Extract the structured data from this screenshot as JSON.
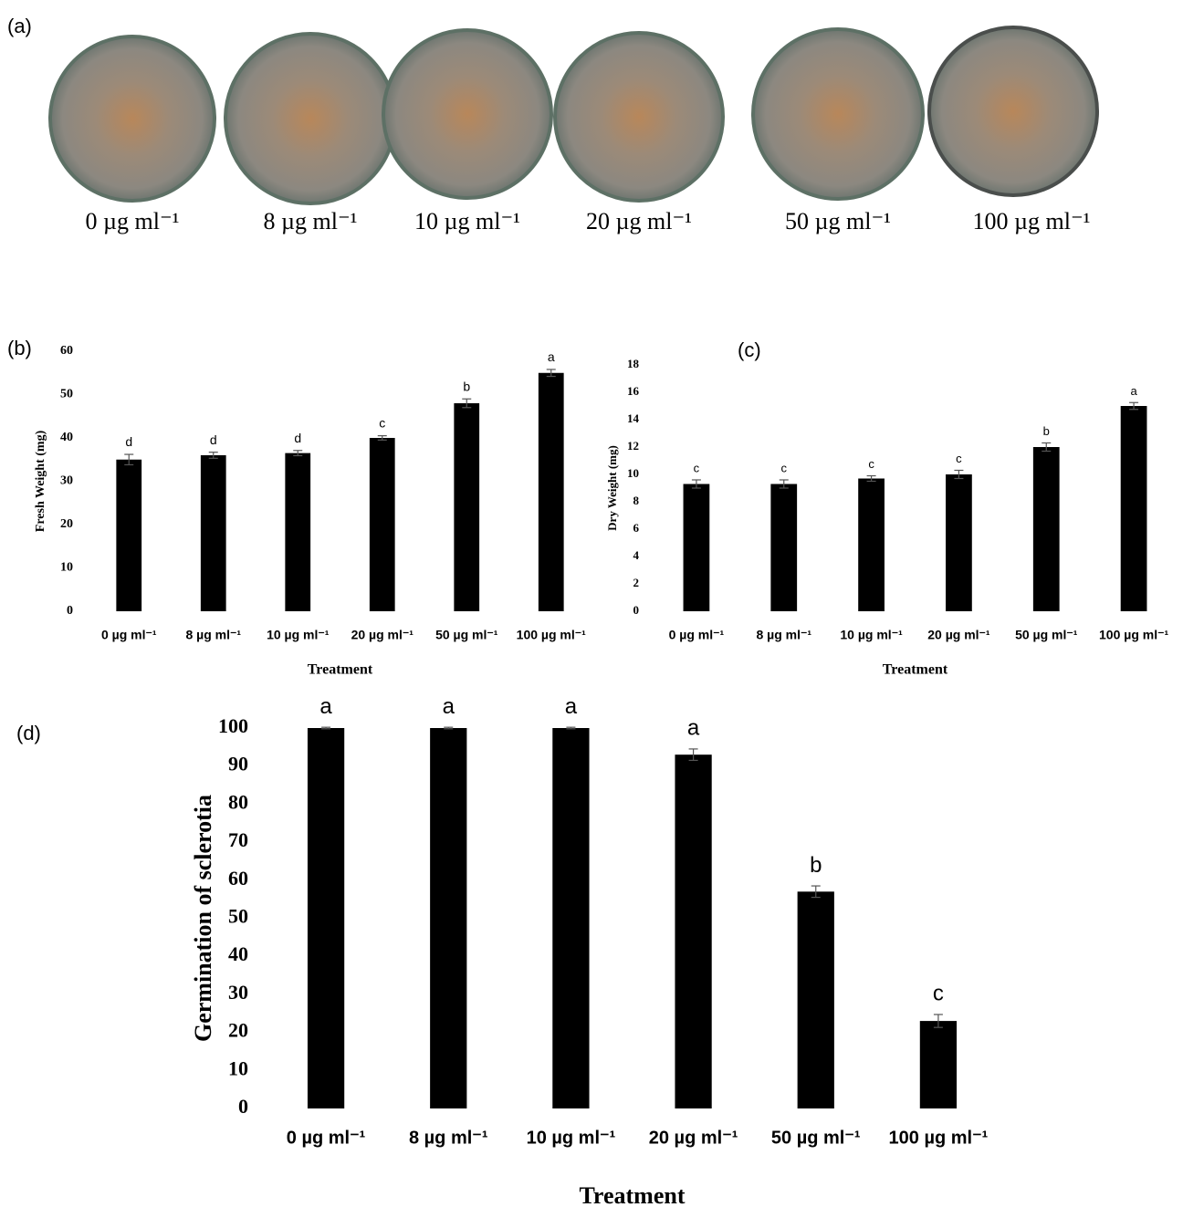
{
  "panel_a": {
    "label": "(a)",
    "captions": [
      "0 µg ml⁻¹",
      "8 µg ml⁻¹",
      "10 µg ml⁻¹",
      "20 µg ml⁻¹",
      "50 µg ml⁻¹",
      "100 µg ml⁻¹"
    ]
  },
  "chart_data": [
    {
      "type": "bar",
      "panel": "(b)",
      "ylabel": "Fresh Weight (mg)",
      "xlabel": "Treatment",
      "categories": [
        "0 µg ml⁻¹",
        "8 µg ml⁻¹",
        "10 µg ml⁻¹",
        "20 µg ml⁻¹",
        "50 µg ml⁻¹",
        "100 µg ml⁻¹"
      ],
      "values": [
        35,
        36,
        36.5,
        40,
        48,
        55
      ],
      "errors": [
        1.2,
        0.7,
        0.6,
        0.5,
        1,
        0.8
      ],
      "annotations": [
        "d",
        "d",
        "d",
        "c",
        "b",
        "a"
      ],
      "color": "#000000",
      "ylim": [
        0,
        60
      ],
      "yticks": [
        0,
        10,
        20,
        30,
        40,
        50,
        60
      ]
    },
    {
      "type": "bar",
      "panel": "(c)",
      "ylabel": "Dry Weight (mg)",
      "xlabel": "Treatment",
      "categories": [
        "0 µg ml⁻¹",
        "8 µg ml⁻¹",
        "10 µg ml⁻¹",
        "20 µg ml⁻¹",
        "50 µg ml⁻¹",
        "100 µg ml⁻¹"
      ],
      "values": [
        9.3,
        9.3,
        9.7,
        10,
        12,
        15
      ],
      "errors": [
        0.3,
        0.3,
        0.2,
        0.3,
        0.3,
        0.25
      ],
      "annotations": [
        "c",
        "c",
        "c",
        "c",
        "b",
        "a"
      ],
      "color": "#000000",
      "ylim": [
        0,
        18
      ],
      "yticks": [
        0,
        2,
        4,
        6,
        8,
        10,
        12,
        14,
        16,
        18
      ]
    },
    {
      "type": "bar",
      "panel": "(d)",
      "ylabel": "Germination of sclerotia",
      "xlabel": "Treatment",
      "categories": [
        "0 µg ml⁻¹",
        "8 µg ml⁻¹",
        "10 µg ml⁻¹",
        "20 µg ml⁻¹",
        "50 µg ml⁻¹",
        "100 µg ml⁻¹"
      ],
      "values": [
        100,
        100,
        100,
        93,
        57,
        23
      ],
      "errors": [
        0.2,
        0.2,
        0.2,
        1.5,
        1.5,
        1.7
      ],
      "annotations": [
        "a",
        "a",
        "a",
        "a",
        "b",
        "c"
      ],
      "color": "#000000",
      "ylim": [
        0,
        100
      ],
      "yticks": [
        0,
        10,
        20,
        30,
        40,
        50,
        60,
        70,
        80,
        90,
        100
      ]
    }
  ]
}
